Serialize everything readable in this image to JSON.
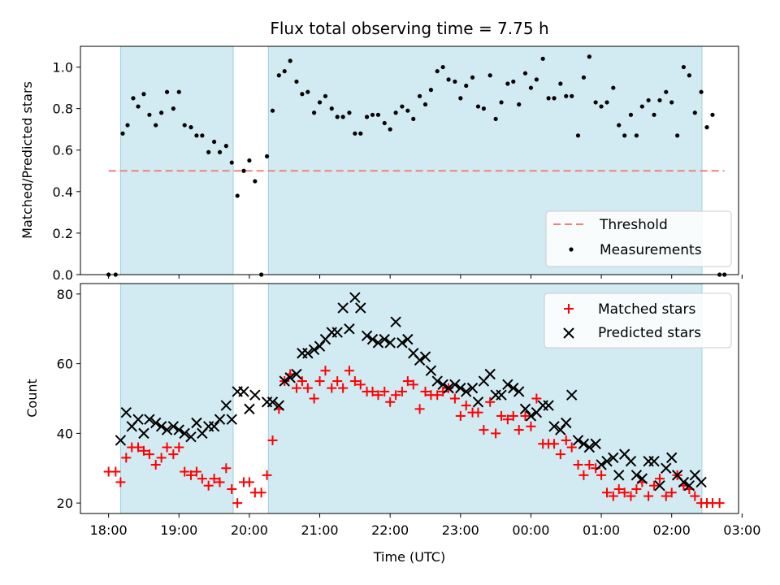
{
  "chart_data": [
    {
      "type": "scatter",
      "title": "Flux total observing time = 7.75 h",
      "xlabel": "",
      "ylabel": "Matched/Predicted stars",
      "ylim": [
        0,
        1.1
      ],
      "yticks": [
        "0.0",
        "0.2",
        "0.4",
        "0.6",
        "0.8",
        "1.0"
      ],
      "threshold": 0.5,
      "threshold_range_hours": [
        18.0,
        26.75
      ],
      "shaded_regions_hours": [
        [
          18.17,
          19.77
        ],
        [
          20.27,
          26.43
        ]
      ],
      "colors": {
        "shade": "#add8e6",
        "threshold": "#f08080",
        "points": "#000000"
      },
      "legend": {
        "position": "lower-right",
        "entries": [
          "Threshold",
          "Measurements"
        ]
      },
      "series": [
        {
          "name": "Measurements",
          "x": [
            18.0,
            18.1,
            18.2,
            18.27,
            18.35,
            18.42,
            18.5,
            18.58,
            18.67,
            18.75,
            18.83,
            18.92,
            19.0,
            19.08,
            19.17,
            19.25,
            19.33,
            19.42,
            19.5,
            19.58,
            19.67,
            19.75,
            19.83,
            19.92,
            20.0,
            20.08,
            20.17,
            20.25,
            20.33,
            20.42,
            20.5,
            20.58,
            20.67,
            20.75,
            20.83,
            20.92,
            21.0,
            21.08,
            21.17,
            21.25,
            21.33,
            21.42,
            21.5,
            21.58,
            21.67,
            21.75,
            21.83,
            21.92,
            22.0,
            22.08,
            22.17,
            22.25,
            22.33,
            22.42,
            22.5,
            22.58,
            22.67,
            22.75,
            22.83,
            22.92,
            23.0,
            23.08,
            23.17,
            23.25,
            23.33,
            23.42,
            23.5,
            23.58,
            23.67,
            23.75,
            23.83,
            23.92,
            24.0,
            24.08,
            24.17,
            24.25,
            24.33,
            24.42,
            24.5,
            24.58,
            24.67,
            24.75,
            24.83,
            24.92,
            25.0,
            25.08,
            25.17,
            25.25,
            25.33,
            25.42,
            25.5,
            25.58,
            25.67,
            25.75,
            25.83,
            25.92,
            26.0,
            26.08,
            26.17,
            26.25,
            26.33,
            26.42,
            26.5,
            26.58
          ],
          "y": [
            0.0,
            0.0,
            0.68,
            0.72,
            0.85,
            0.81,
            0.87,
            0.77,
            0.72,
            0.78,
            0.88,
            0.8,
            0.88,
            0.72,
            0.71,
            0.67,
            0.67,
            0.59,
            0.64,
            0.59,
            0.62,
            0.54,
            0.38,
            0.5,
            0.55,
            0.45,
            0.0,
            0.57,
            0.79,
            0.96,
            0.98,
            1.03,
            0.93,
            0.87,
            0.88,
            0.78,
            0.83,
            0.86,
            0.8,
            0.76,
            0.76,
            0.78,
            0.68,
            0.68,
            0.76,
            0.77,
            0.77,
            0.73,
            0.7,
            0.78,
            0.81,
            0.79,
            0.75,
            0.86,
            0.82,
            0.89,
            0.98,
            1.0,
            0.94,
            0.93,
            0.85,
            0.91,
            0.95,
            0.81,
            0.8,
            0.96,
            0.75,
            0.83,
            0.92,
            0.93,
            0.82,
            0.97,
            0.9,
            0.94,
            1.04,
            0.85,
            0.85,
            0.92,
            0.86,
            0.86,
            0.67,
            0.95,
            1.05,
            0.83,
            0.81,
            0.83,
            0.9,
            0.72,
            0.67,
            0.77,
            0.67,
            0.81,
            0.84,
            0.77,
            0.84,
            0.88,
            0.83,
            0.67,
            1.0,
            0.96,
            0.78,
            0.88,
            0.71,
            0.77
          ]
        }
      ],
      "extra_points": {
        "x": [
          26.68,
          26.75
        ],
        "y": [
          0.0,
          0.0
        ]
      }
    },
    {
      "type": "scatter",
      "title": "",
      "xlabel": "Time (UTC)",
      "ylabel": "Count",
      "ylim": [
        17,
        83
      ],
      "yticks": [
        "20",
        "40",
        "60",
        "80"
      ],
      "xticks": [
        "18:00",
        "19:00",
        "20:00",
        "21:00",
        "22:00",
        "23:00",
        "00:00",
        "01:00",
        "02:00",
        "03:00"
      ],
      "xlim_hours": [
        17.6,
        26.95
      ],
      "shaded_regions_hours": [
        [
          18.17,
          19.77
        ],
        [
          20.27,
          26.43
        ]
      ],
      "colors": {
        "matched": "#ff0000",
        "predicted": "#000000",
        "shade": "#add8e6"
      },
      "legend": {
        "position": "top-right",
        "entries": [
          "Matched stars",
          "Predicted stars"
        ]
      },
      "series": [
        {
          "name": "Matched stars",
          "x": [
            18.0,
            18.1,
            18.17,
            18.25,
            18.33,
            18.42,
            18.5,
            18.58,
            18.67,
            18.75,
            18.83,
            18.92,
            19.0,
            19.08,
            19.17,
            19.25,
            19.33,
            19.42,
            19.5,
            19.58,
            19.67,
            19.75,
            19.83,
            19.92,
            20.0,
            20.08,
            20.17,
            20.25,
            20.33,
            20.42,
            20.5,
            20.58,
            20.67,
            20.75,
            20.83,
            20.92,
            21.0,
            21.08,
            21.17,
            21.25,
            21.33,
            21.42,
            21.5,
            21.58,
            21.67,
            21.75,
            21.83,
            21.92,
            22.0,
            22.08,
            22.17,
            22.25,
            22.33,
            22.42,
            22.5,
            22.58,
            22.67,
            22.75,
            22.83,
            22.92,
            23.0,
            23.08,
            23.17,
            23.25,
            23.33,
            23.42,
            23.5,
            23.58,
            23.67,
            23.75,
            23.83,
            23.92,
            24.0,
            24.08,
            24.17,
            24.25,
            24.33,
            24.42,
            24.5,
            24.58,
            24.67,
            24.75,
            24.83,
            24.92,
            25.0,
            25.08,
            25.17,
            25.25,
            25.33,
            25.42,
            25.5,
            25.58,
            25.67,
            25.75,
            25.83,
            25.92,
            26.0,
            26.08,
            26.17,
            26.25,
            26.33,
            26.42,
            26.5,
            26.58,
            26.68
          ],
          "y": [
            29,
            29,
            26,
            33,
            36,
            36,
            35,
            34,
            31,
            33,
            36,
            34,
            36,
            29,
            28,
            29,
            27,
            25,
            27,
            26,
            30,
            24,
            20,
            26,
            26,
            23,
            23,
            28,
            38,
            47,
            55,
            57,
            53,
            55,
            53,
            50,
            55,
            58,
            53,
            55,
            53,
            58,
            55,
            54,
            52,
            52,
            51,
            52,
            49,
            51,
            52,
            55,
            54,
            47,
            52,
            51,
            51,
            52,
            53,
            50,
            45,
            48,
            46,
            46,
            41,
            49,
            40,
            45,
            44,
            45,
            41,
            45,
            42,
            50,
            37,
            37,
            37,
            34,
            38,
            36,
            31,
            28,
            31,
            30,
            28,
            23,
            22,
            24,
            23,
            22,
            24,
            26,
            22,
            25,
            27,
            22,
            23,
            28,
            25,
            24,
            22,
            20,
            20,
            20,
            20
          ]
        },
        {
          "name": "Predicted stars",
          "x": [
            18.17,
            18.25,
            18.33,
            18.42,
            18.5,
            18.58,
            18.67,
            18.75,
            18.83,
            18.92,
            19.0,
            19.08,
            19.17,
            19.25,
            19.33,
            19.42,
            19.5,
            19.58,
            19.67,
            19.75,
            19.83,
            19.92,
            20.0,
            20.08,
            20.25,
            20.33,
            20.42,
            20.5,
            20.58,
            20.67,
            20.75,
            20.83,
            20.92,
            21.0,
            21.08,
            21.17,
            21.25,
            21.33,
            21.42,
            21.5,
            21.58,
            21.67,
            21.75,
            21.83,
            21.92,
            22.0,
            22.08,
            22.17,
            22.25,
            22.33,
            22.42,
            22.5,
            22.58,
            22.67,
            22.75,
            22.83,
            22.92,
            23.0,
            23.08,
            23.17,
            23.25,
            23.33,
            23.42,
            23.5,
            23.58,
            23.67,
            23.75,
            23.83,
            23.92,
            24.0,
            24.08,
            24.17,
            24.25,
            24.33,
            24.42,
            24.5,
            24.58,
            24.67,
            24.75,
            24.83,
            24.92,
            25.0,
            25.08,
            25.17,
            25.25,
            25.33,
            25.42,
            25.5,
            25.58,
            25.67,
            25.75,
            25.83,
            25.92,
            26.0,
            26.08,
            26.17,
            26.25,
            26.33,
            26.42
          ],
          "y": [
            38,
            46,
            42,
            44,
            40,
            44,
            43,
            42,
            41,
            42,
            41,
            40,
            39,
            43,
            40,
            42,
            42,
            44,
            48,
            44,
            52,
            52,
            47,
            51,
            49,
            49,
            48,
            55,
            56,
            57,
            63,
            63,
            64,
            65,
            67,
            69,
            69,
            76,
            70,
            79,
            76,
            68,
            67,
            66,
            67,
            66,
            72,
            66,
            67,
            63,
            61,
            62,
            58,
            55,
            54,
            53,
            54,
            53,
            52,
            53,
            49,
            55,
            57,
            51,
            51,
            54,
            53,
            52,
            47,
            45,
            46,
            48,
            48,
            42,
            41,
            43,
            51,
            38,
            37,
            36,
            37,
            31,
            32,
            33,
            28,
            34,
            32,
            28,
            27,
            32,
            32,
            25,
            30,
            33,
            28,
            26,
            25,
            28,
            26
          ]
        }
      ]
    }
  ]
}
